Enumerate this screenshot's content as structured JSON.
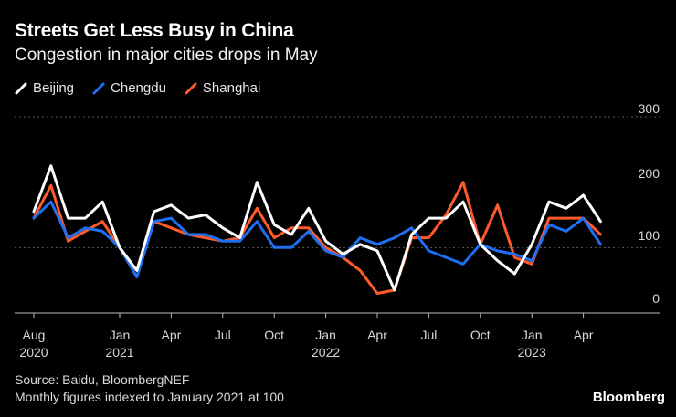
{
  "header": {
    "title": "Streets Get Less Busy in China",
    "subtitle": "Congestion in major cities drops in May"
  },
  "footer": {
    "source": "Source: Baidu, BloombergNEF",
    "note": "Monthly figures indexed to January 2021 at 100",
    "brand": "Bloomberg"
  },
  "colors": {
    "background": "#000000",
    "grid": "#5a5a5a",
    "axis": "#bbbbbb"
  },
  "chart_data": {
    "type": "line",
    "title": "Streets Get Less Busy in China",
    "subtitle": "Congestion in major cities drops in May",
    "xlabel": "",
    "ylabel": "",
    "ylim": [
      0,
      300
    ],
    "yticks": [
      "0",
      "100",
      "200",
      "300"
    ],
    "grid": true,
    "legend_position": "top-left",
    "x": [
      "2020-08",
      "2020-09",
      "2020-10",
      "2020-11",
      "2020-12",
      "2021-01",
      "2021-02",
      "2021-03",
      "2021-04",
      "2021-05",
      "2021-06",
      "2021-07",
      "2021-08",
      "2021-09",
      "2021-10",
      "2021-11",
      "2021-12",
      "2022-01",
      "2022-02",
      "2022-03",
      "2022-04",
      "2022-05",
      "2022-06",
      "2022-07",
      "2022-08",
      "2022-09",
      "2022-10",
      "2022-11",
      "2022-12",
      "2023-01",
      "2023-02",
      "2023-03",
      "2023-04",
      "2023-05",
      "2023-06"
    ],
    "x_tick_labels": [
      {
        "month": "Aug",
        "year": "2020"
      },
      {
        "month": "Jan",
        "year": "2021"
      },
      {
        "month": "Apr",
        "year": ""
      },
      {
        "month": "Jul",
        "year": ""
      },
      {
        "month": "Oct",
        "year": ""
      },
      {
        "month": "Jan",
        "year": "2022"
      },
      {
        "month": "Apr",
        "year": ""
      },
      {
        "month": "Jul",
        "year": ""
      },
      {
        "month": "Oct",
        "year": ""
      },
      {
        "month": "Jan",
        "year": "2023"
      },
      {
        "month": "Apr",
        "year": ""
      }
    ],
    "x_tick_months": [
      "2020-08",
      "2021-01",
      "2021-04",
      "2021-07",
      "2021-10",
      "2022-01",
      "2022-04",
      "2022-07",
      "2022-10",
      "2023-01",
      "2023-04"
    ],
    "series": [
      {
        "name": "Beijing",
        "color": "#ffffff",
        "values": [
          155,
          225,
          145,
          145,
          170,
          100,
          65,
          155,
          165,
          145,
          150,
          130,
          115,
          200,
          135,
          120,
          160,
          110,
          90,
          105,
          95,
          35,
          120,
          145,
          145,
          170,
          105,
          80,
          60,
          105,
          170,
          160,
          180,
          140,
          null
        ]
      },
      {
        "name": "Chengdu",
        "color": "#1f6ff2",
        "values": [
          145,
          170,
          115,
          130,
          125,
          100,
          55,
          140,
          145,
          120,
          120,
          110,
          110,
          140,
          100,
          100,
          125,
          95,
          85,
          115,
          105,
          115,
          130,
          95,
          85,
          75,
          105,
          95,
          90,
          80,
          135,
          125,
          145,
          105,
          null
        ]
      },
      {
        "name": "Shanghai",
        "color": "#ff5a2a",
        "values": [
          145,
          195,
          110,
          125,
          140,
          100,
          55,
          140,
          130,
          120,
          115,
          110,
          115,
          160,
          115,
          130,
          130,
          100,
          85,
          65,
          30,
          35,
          115,
          115,
          150,
          200,
          105,
          165,
          85,
          75,
          145,
          145,
          145,
          120,
          null
        ]
      }
    ]
  }
}
